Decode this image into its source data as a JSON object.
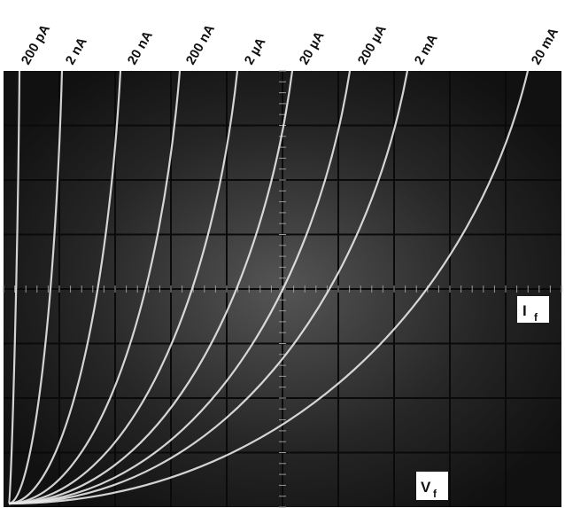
{
  "current_labels": [
    "200 pA",
    "2 nA",
    "20 nA",
    "200 nA",
    "2 µA",
    "20 µA",
    "200 µA",
    "2 mA",
    "20 mA"
  ],
  "vertical_axis_label": {
    "main": "I",
    "sub": "f"
  },
  "horizontal_axis_label": {
    "main": "V",
    "sub": "f"
  }
}
